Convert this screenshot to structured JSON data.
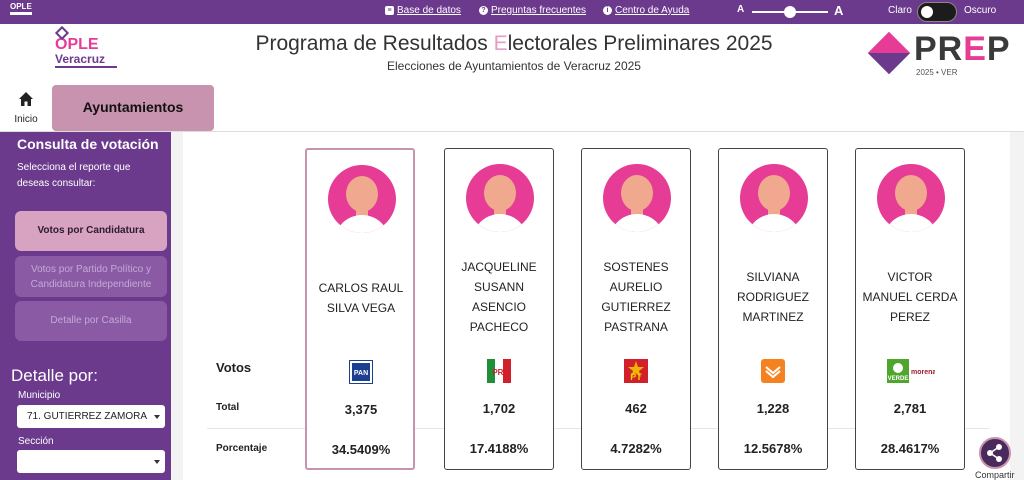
{
  "topbar": {
    "links": [
      {
        "label": "Base de datos",
        "icon": "database-icon"
      },
      {
        "label": "Preguntas frecuentes",
        "icon": "question-icon"
      },
      {
        "label": "Centro de Ayuda",
        "icon": "info-icon"
      }
    ],
    "font_small": "A",
    "font_large": "A",
    "theme_light": "Claro",
    "theme_dark": "Oscuro"
  },
  "header": {
    "logo_ople": "OPLE",
    "logo_sub": "Veracruz",
    "title_a": "Programa de Resultados ",
    "title_e": "E",
    "title_b": "lectorales Preliminares 2025",
    "subtitle": "Elecciones de Ayuntamientos de Veracruz 2025",
    "prep_a": "PR",
    "prep_b": "E",
    "prep_c": "P",
    "prep_year": "2025  •  VER"
  },
  "nav": {
    "home": "Inicio",
    "tab": "Ayuntamientos"
  },
  "sidebar": {
    "heading": "Consulta de votación",
    "desc": "Selecciona el reporte que deseas consultar:",
    "options": [
      "Votos por Candidatura",
      "Votos por Partido Político y Candidatura Independiente",
      "Detalle por Casilla"
    ],
    "detail_heading": "Detalle por:",
    "municipio_label": "Municipio",
    "municipio_value": "71. GUTIERREZ ZAMORA",
    "seccion_label": "Sección",
    "seccion_value": ""
  },
  "table": {
    "row_votos": "Votos",
    "row_total": "Total",
    "row_pct": "Porcentaje",
    "candidates": [
      {
        "name": [
          "CARLOS RAUL",
          "SILVA VEGA"
        ],
        "party": "PAN",
        "total": "3,375",
        "pct": "34.5409%"
      },
      {
        "name": [
          "JACQUELINE",
          "SUSANN",
          "ASENCIO",
          "PACHECO"
        ],
        "party": "PRI",
        "total": "1,702",
        "pct": "17.4188%"
      },
      {
        "name": [
          "SOSTENES",
          "AURELIO",
          "GUTIERREZ",
          "PASTRANA"
        ],
        "party": "PT",
        "total": "462",
        "pct": "4.7282%"
      },
      {
        "name": [
          "SILVIANA",
          "RODRIGUEZ",
          "MARTINEZ"
        ],
        "party": "MC",
        "total": "1,228",
        "pct": "12.5678%"
      },
      {
        "name": [
          "VICTOR",
          "MANUEL CERDA",
          "PEREZ"
        ],
        "party": "VERDE",
        "total": "2,781",
        "pct": "28.4617%"
      }
    ],
    "verde_label": "VERDE",
    "morena_label": "morena"
  },
  "share": "Compartir",
  "colors": {
    "purple": "#6b3a8c",
    "pink": "#e63c96",
    "accent": "#c893ae"
  }
}
